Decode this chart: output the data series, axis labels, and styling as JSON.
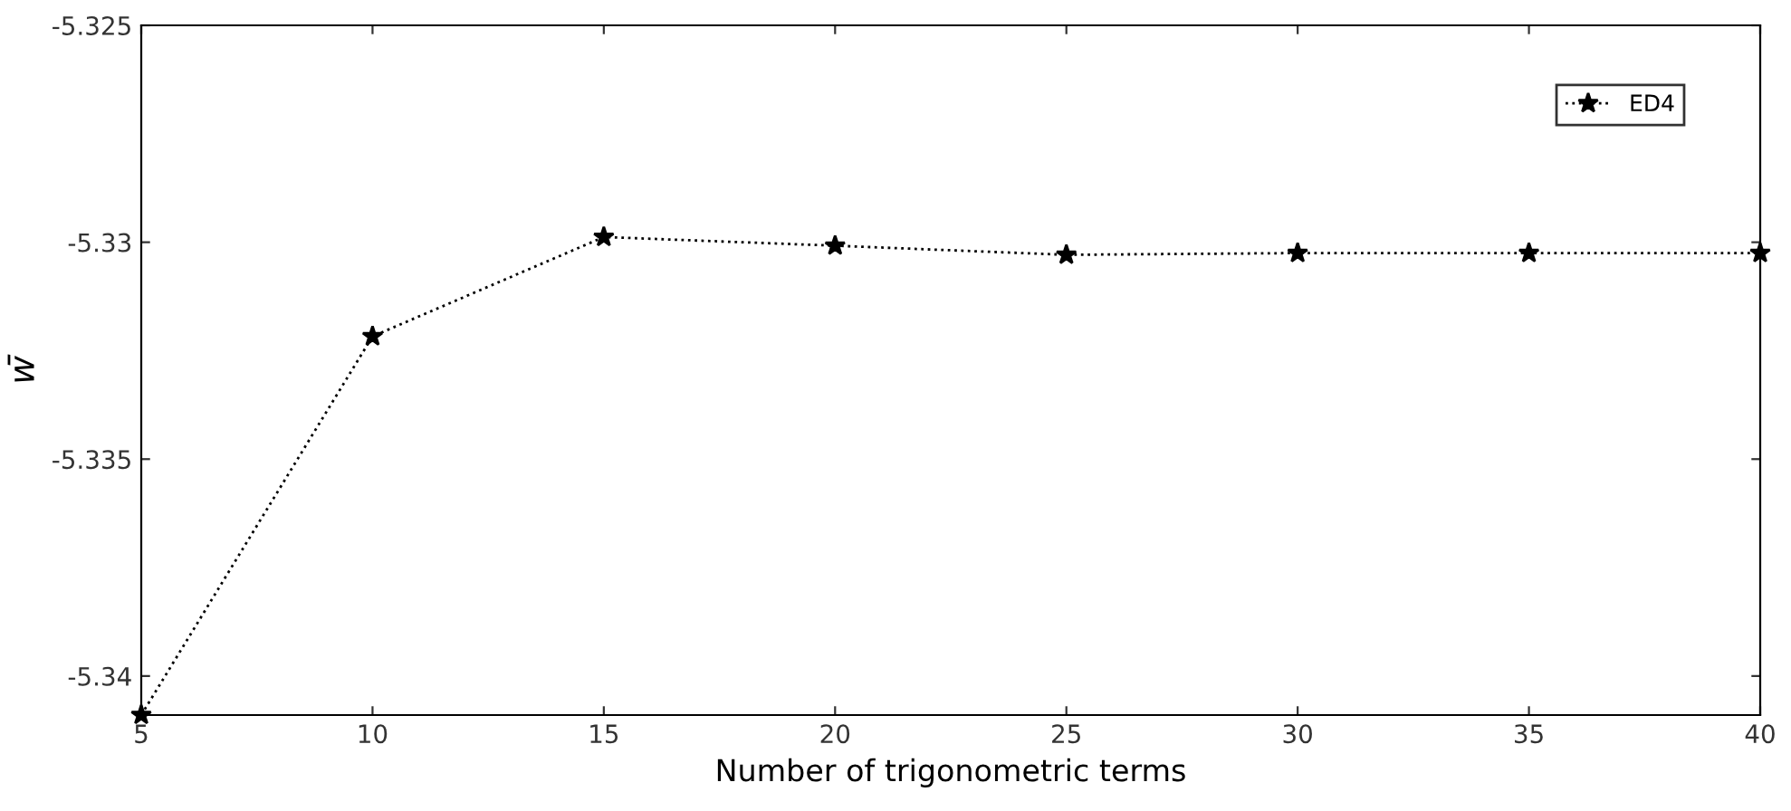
{
  "chart_data": {
    "type": "line",
    "xlabel": "Number of trigonometric terms",
    "ylabel": "w̄",
    "x": [
      5,
      10,
      15,
      20,
      25,
      30,
      35,
      40
    ],
    "series": [
      {
        "name": "ED4",
        "color": "#000000",
        "values": [
          -5.3409,
          -5.33217,
          -5.32988,
          -5.33008,
          -5.33029,
          -5.33025,
          -5.33025,
          -5.33025
        ]
      }
    ],
    "xlim": [
      5,
      40
    ],
    "xticks": [
      5,
      10,
      15,
      20,
      25,
      30,
      35,
      40
    ],
    "ylim": [
      -5.3409,
      -5.325
    ],
    "yticks": [
      -5.325,
      -5.33,
      -5.335,
      -5.34
    ],
    "marker": "star",
    "line_style": "dotted",
    "grid": false,
    "legend": "top right"
  }
}
